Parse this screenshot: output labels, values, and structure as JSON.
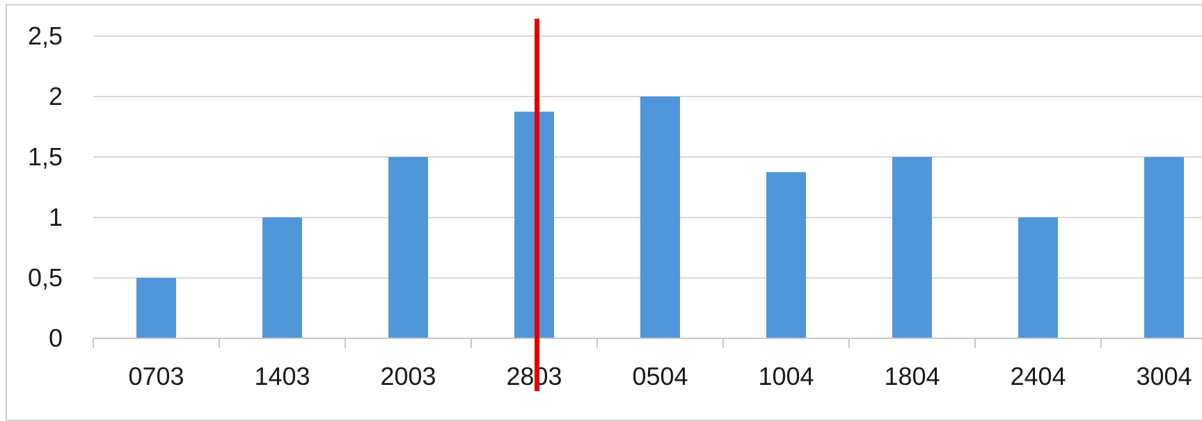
{
  "chart_data": {
    "type": "bar",
    "categories": [
      "0703",
      "1403",
      "2003",
      "2803",
      "0504",
      "1004",
      "1804",
      "2404",
      "3004"
    ],
    "values": [
      0.5,
      1,
      1.5,
      1.875,
      2,
      1.375,
      1.5,
      1,
      1.5
    ],
    "y_ticks": [
      "0",
      "0,5",
      "1",
      "1,5",
      "2",
      "2,5"
    ],
    "ylim": [
      0,
      2.5
    ],
    "grid": true,
    "colors": {
      "bar": "#5096DA",
      "marker_line": "#E00000",
      "grid": "#d9d9d9",
      "axis": "#c8c8c8"
    },
    "marker": {
      "after_category": "2803"
    }
  }
}
